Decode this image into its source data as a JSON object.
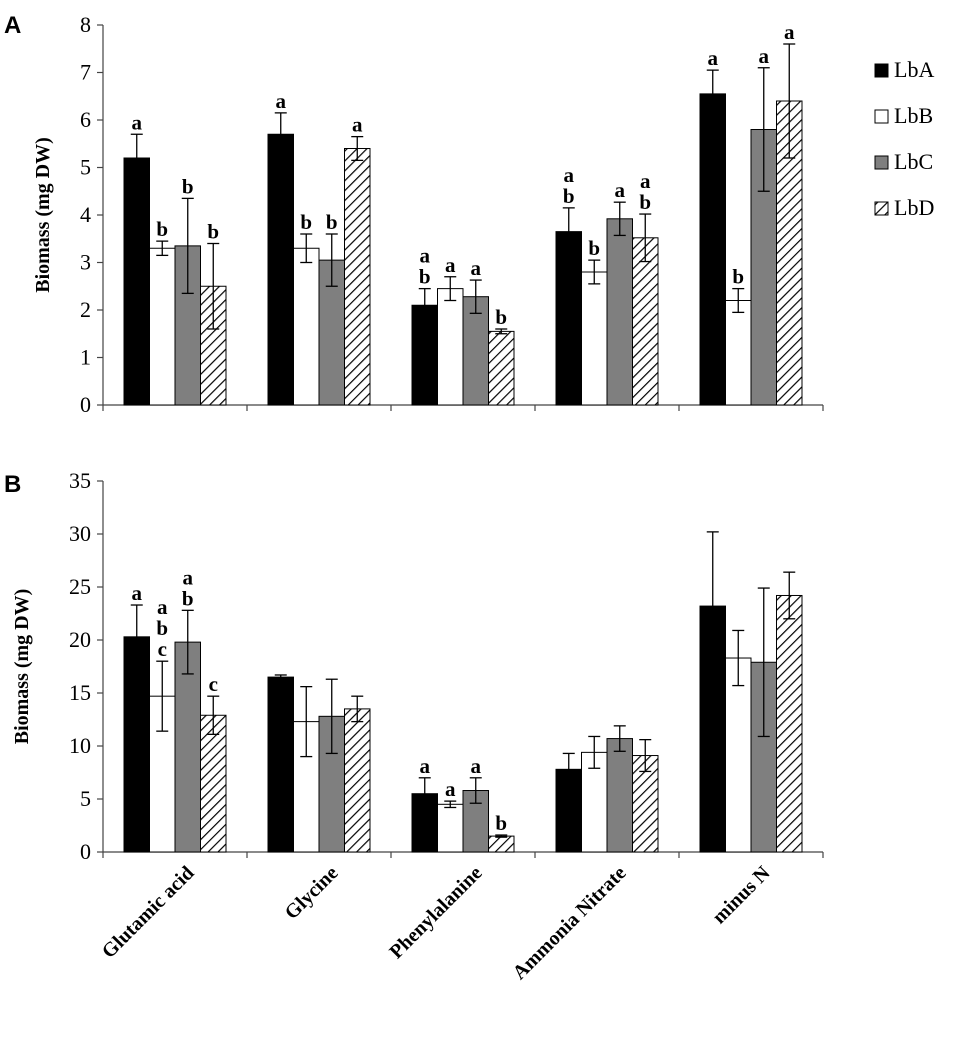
{
  "chart_data": [
    {
      "panel": "A",
      "type": "bar",
      "ylabel": "Biomass (mg DW)",
      "ylim": [
        0,
        8
      ],
      "yticks": [
        0,
        1,
        2,
        3,
        4,
        5,
        6,
        7,
        8
      ],
      "categories": [
        "Glutamic acid",
        "Glycine",
        "Phenylalanine",
        "Ammonia Nitrate",
        "minus N"
      ],
      "series": [
        {
          "name": "LbA",
          "style": "black",
          "values": [
            5.2,
            5.7,
            2.1,
            3.65,
            6.55
          ],
          "errors": [
            0.5,
            0.45,
            0.35,
            0.5,
            0.5
          ],
          "sig": [
            [
              "a"
            ],
            [
              "a"
            ],
            [
              "a",
              "b"
            ],
            [
              "a",
              "b"
            ],
            [
              "a"
            ]
          ]
        },
        {
          "name": "LbB",
          "style": "white",
          "values": [
            3.3,
            3.3,
            2.45,
            2.8,
            2.2
          ],
          "errors": [
            0.15,
            0.3,
            0.25,
            0.25,
            0.25
          ],
          "sig": [
            [
              "b"
            ],
            [
              "b"
            ],
            [
              "a"
            ],
            [
              "b"
            ],
            [
              "b"
            ]
          ]
        },
        {
          "name": "LbC",
          "style": "gray",
          "values": [
            3.35,
            3.05,
            2.28,
            3.92,
            5.8
          ],
          "errors": [
            1.0,
            0.55,
            0.35,
            0.35,
            1.3
          ],
          "sig": [
            [
              "b"
            ],
            [
              "b"
            ],
            [
              "a"
            ],
            [
              "a"
            ],
            [
              "a"
            ]
          ]
        },
        {
          "name": "LbD",
          "style": "hatched",
          "values": [
            2.5,
            5.4,
            1.55,
            3.52,
            6.4
          ],
          "errors": [
            0.9,
            0.25,
            0.05,
            0.5,
            1.2
          ],
          "sig": [
            [
              "b"
            ],
            [
              "a"
            ],
            [
              "b"
            ],
            [
              "a",
              "b"
            ],
            [
              "a"
            ]
          ]
        }
      ],
      "legend": [
        "LbA",
        "LbB",
        "LbC",
        "LbD"
      ]
    },
    {
      "panel": "B",
      "type": "bar",
      "ylabel": "Biomass (mg DW)",
      "ylim": [
        0,
        35
      ],
      "yticks": [
        0,
        5,
        10,
        15,
        20,
        25,
        30,
        35
      ],
      "categories": [
        "Glutamic acid",
        "Glycine",
        "Phenylalanine",
        "Ammonia Nitrate",
        "minus N"
      ],
      "series": [
        {
          "name": "LbA",
          "style": "black",
          "values": [
            20.3,
            16.5,
            5.5,
            7.8,
            23.2
          ],
          "errors": [
            3.0,
            0.2,
            1.5,
            1.5,
            7.0
          ],
          "sig": [
            [
              "a"
            ],
            [],
            [
              "a"
            ],
            [],
            []
          ]
        },
        {
          "name": "LbB",
          "style": "white",
          "values": [
            14.7,
            12.3,
            4.5,
            9.4,
            18.3
          ],
          "errors": [
            3.3,
            3.3,
            0.3,
            1.5,
            2.6
          ],
          "sig": [
            [
              "a",
              "b",
              "c"
            ],
            [],
            [
              "a"
            ],
            [],
            []
          ]
        },
        {
          "name": "LbC",
          "style": "gray",
          "values": [
            19.8,
            12.8,
            5.8,
            10.7,
            17.9
          ],
          "errors": [
            3.0,
            3.5,
            1.2,
            1.2,
            7.0
          ],
          "sig": [
            [
              "a",
              "b"
            ],
            [],
            [
              "a"
            ],
            [],
            []
          ]
        },
        {
          "name": "LbD",
          "style": "hatched",
          "values": [
            12.9,
            13.5,
            1.5,
            9.1,
            24.2
          ],
          "errors": [
            1.8,
            1.2,
            0.1,
            1.5,
            2.2
          ],
          "sig": [
            [
              "c"
            ],
            [],
            [
              "b"
            ],
            [],
            []
          ]
        }
      ]
    }
  ],
  "legend": {
    "entries": [
      "LbA",
      "LbB",
      "LbC",
      "LbD"
    ]
  }
}
